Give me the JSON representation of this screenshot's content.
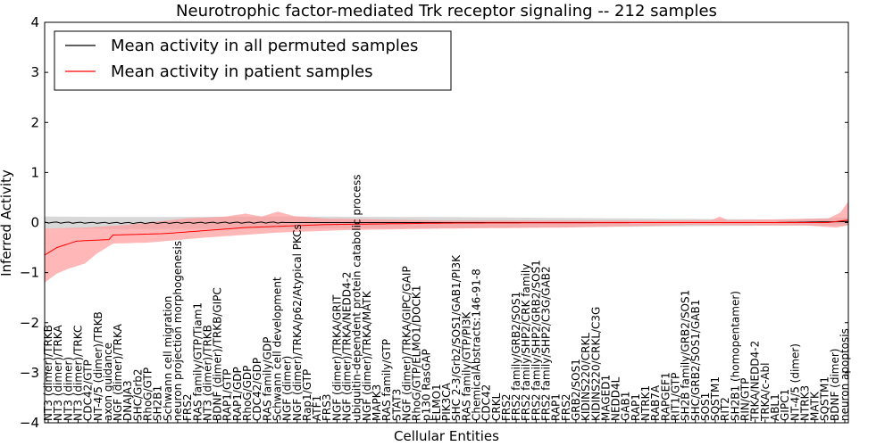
{
  "chart_data": {
    "type": "line",
    "title": "Neurotrophic factor-mediated Trk receptor signaling -- 212 samples",
    "xlabel": "Cellular Entities",
    "ylabel": "Inferred Activity",
    "ylim": [
      -4,
      4
    ],
    "yticks": [
      "4",
      "3",
      "2",
      "1",
      "0",
      "−1",
      "−2",
      "−3",
      "−4"
    ],
    "grid": false,
    "legend_position": "top-left",
    "series": [
      {
        "name": "Mean activity in all permuted samples",
        "color": "#000000",
        "band_color": "#c8c8c8",
        "keypoints": [
          [
            0,
            0.0
          ],
          [
            20,
            -0.01
          ],
          [
            60,
            0.0
          ],
          [
            100,
            0.0
          ],
          [
            150,
            0.0
          ],
          [
            182,
            0.0
          ],
          [
            200,
            0.02
          ]
        ],
        "band_halfwidth": [
          [
            0,
            0.12
          ],
          [
            60,
            0.12
          ],
          [
            100,
            0.11
          ],
          [
            150,
            0.08
          ],
          [
            182,
            0.06
          ],
          [
            200,
            0.08
          ]
        ]
      },
      {
        "name": "Mean activity in patient samples",
        "color": "#ff0000",
        "band_color": "#ff9999",
        "keypoints": [
          [
            0,
            -0.65
          ],
          [
            3,
            -0.5
          ],
          [
            8,
            -0.37
          ],
          [
            16,
            -0.34
          ],
          [
            17,
            -0.25
          ],
          [
            30,
            -0.22
          ],
          [
            50,
            -0.1
          ],
          [
            70,
            -0.04
          ],
          [
            100,
            -0.01
          ],
          [
            150,
            0.0
          ],
          [
            195,
            0.0
          ],
          [
            200,
            0.05
          ]
        ],
        "band_lower": [
          [
            0,
            -1.2
          ],
          [
            3,
            -1.02
          ],
          [
            6,
            -0.92
          ],
          [
            10,
            -0.82
          ],
          [
            13,
            -0.62
          ],
          [
            17,
            -0.42
          ],
          [
            26,
            -0.4
          ],
          [
            40,
            -0.3
          ],
          [
            58,
            -0.2
          ],
          [
            75,
            -0.15
          ],
          [
            100,
            -0.12
          ],
          [
            130,
            -0.1
          ],
          [
            160,
            -0.05
          ],
          [
            190,
            -0.06
          ],
          [
            197,
            -0.1
          ],
          [
            200,
            -0.05
          ]
        ],
        "band_upper": [
          [
            0,
            -0.12
          ],
          [
            10,
            -0.1
          ],
          [
            20,
            -0.05
          ],
          [
            35,
            0.08
          ],
          [
            45,
            0.12
          ],
          [
            50,
            0.18
          ],
          [
            54,
            0.12
          ],
          [
            58,
            0.22
          ],
          [
            62,
            0.13
          ],
          [
            70,
            0.08
          ],
          [
            100,
            0.04
          ],
          [
            150,
            0.04
          ],
          [
            166,
            0.05
          ],
          [
            168,
            0.12
          ],
          [
            170,
            0.05
          ],
          [
            195,
            0.08
          ],
          [
            198,
            0.2
          ],
          [
            200,
            0.42
          ]
        ]
      }
    ],
    "x_tick_labels": [
      "NT3 (dimer)/TRKB",
      "NT3 (dimer)/TRKA",
      "NT3 (dimer)",
      "NT3 (dimer)/TRKC",
      "CDC42/GTP",
      "NT-4/5 (dimer)/TRKB",
      "axon guidance",
      "NGF (dimer)/TRKA",
      "DNAJA3",
      "SHC/Grb2",
      "RhoG/GTP",
      "SH2B1",
      "Schwann cell migration",
      "neuron projection morphogenesis",
      "FRS2",
      "RAS family/GTP/Tiam1",
      "NT3 (dimer)/TRKB",
      "BDNF (dimer)/TRKB/GIPC",
      "RAP1/GTP",
      "RAP1/GDP",
      "RhoG/GDP",
      "CDC42/GDP",
      "RAS family/GDP",
      "Schwann cell development",
      "NGF (dimer)",
      "NGF (dimer)/TRKA/p62/Atypical PKCs",
      "Rap1/GTP",
      "ATF1",
      "FRS3",
      "NGF (dimer)/TRKA/GRIT",
      "NGF (dimer)/TRKA/NEDD4-2",
      "ubiquitin-dependent protein catabolic process",
      "NGF (dimer)/TRKA/MATK",
      "MAPK3",
      "RAS family/GTP",
      "STAT3",
      "NGF (dimer)/TRKA/GIPC/GAIP",
      "RhoG/GTP/ELMO1/DOCK1",
      "p130 RasGAP",
      "ELMO1",
      "PIK3CA",
      "SHC 2-3/Grb2/SOS1/GAB1/PI3K",
      "RAS family/GTP/PI3K",
      "ChemicalAbstracts:146-91-8",
      "CDC42",
      "CRKL",
      "FRS2",
      "FRS2 family/GRB2/SOS1",
      "FRS2 family/SHP2/CRK family",
      "FRS2 family/SHP2/GRB2/SOS1",
      "FRS2 family/SHP2/C3G/GAB2",
      "RAP1",
      "FRS2",
      "GRB2/SOS1",
      "KIDINS220/CRKL",
      "KIDINS220/CRKL/C3G",
      "MAGED1",
      "NEDD4L",
      "GAB1",
      "RAP1",
      "NTRK1",
      "RAB7A",
      "RAPGEF1",
      "RIT1/GTP",
      "SH2B family/GRB2/SOS1",
      "SHC/GRB2/SOS1/GAB1",
      "SOS1",
      "SQSTM1",
      "RIT2",
      "SH2B1 (homopentamer)",
      "RIN/GTP",
      "TRKA/NEDD4-2",
      "TRKA/c-Abl",
      "ABL1",
      "GIPC1",
      "NT-4/5 (dimer)",
      "NTRK3",
      "MATK",
      "SQSTM1",
      "BDNF (dimer)",
      "neuron apoptosis"
    ],
    "legend_entries": [
      {
        "label": "Mean activity in all permuted samples",
        "color": "#000000"
      },
      {
        "label": "Mean activity in patient samples",
        "color": "#ff0000"
      }
    ]
  }
}
